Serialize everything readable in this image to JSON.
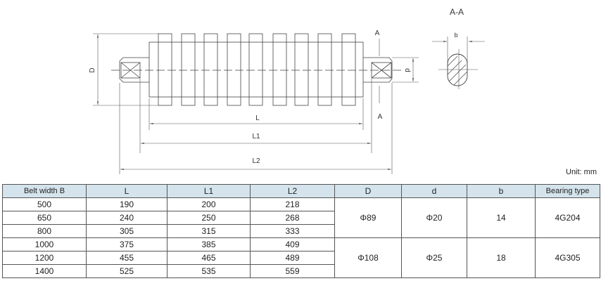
{
  "drawing": {
    "labels": {
      "D": "D",
      "d": "d",
      "L": "L",
      "L1": "L1",
      "L2": "L2",
      "section_mark": "A",
      "section_title": "A-A",
      "b": "b"
    }
  },
  "unit": "Unit: mm",
  "table": {
    "headers": [
      "Belt width B",
      "L",
      "L1",
      "L2",
      "D",
      "d",
      "b",
      "Bearing type"
    ],
    "rows": [
      {
        "B": "500",
        "L": "190",
        "L1": "200",
        "L2": "218"
      },
      {
        "B": "650",
        "L": "240",
        "L1": "250",
        "L2": "268"
      },
      {
        "B": "800",
        "L": "305",
        "L1": "315",
        "L2": "333"
      },
      {
        "B": "1000",
        "L": "375",
        "L1": "385",
        "L2": "409"
      },
      {
        "B": "1200",
        "L": "455",
        "L1": "465",
        "L2": "489"
      },
      {
        "B": "1400",
        "L": "525",
        "L1": "535",
        "L2": "559"
      }
    ],
    "groups": [
      {
        "D": "Φ89",
        "d": "Φ20",
        "b": "14",
        "bearing": "4G204"
      },
      {
        "D": "Φ108",
        "d": "Φ25",
        "b": "18",
        "bearing": "4G305"
      }
    ],
    "header_color": "#d5e4ec"
  }
}
